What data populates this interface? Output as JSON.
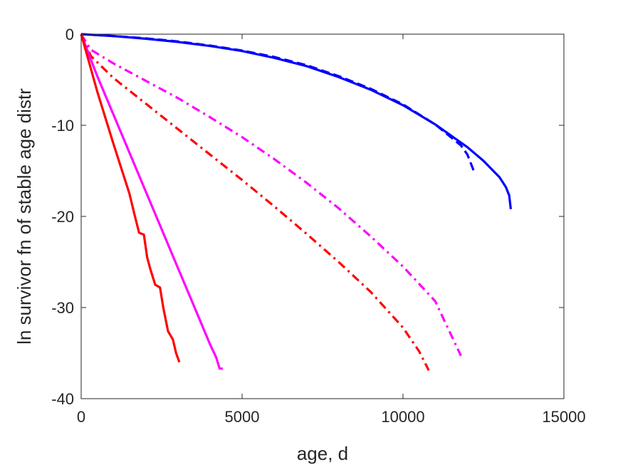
{
  "chart_data": {
    "type": "line",
    "title": "",
    "xlabel": "age, d",
    "ylabel": "ln survivor fn of stable age distr",
    "xlim": [
      0,
      15000
    ],
    "ylim": [
      -40,
      0
    ],
    "xticks": [
      0,
      5000,
      10000,
      15000
    ],
    "yticks": [
      0,
      -10,
      -20,
      -30,
      -40
    ],
    "xtick_labels": [
      "0",
      "5000",
      "10000",
      "15000"
    ],
    "ytick_labels": [
      "0",
      "-10",
      "-20",
      "-30",
      "-40"
    ],
    "grid": false,
    "legend": "none",
    "series": [
      {
        "color": "#0000ff",
        "style": "solid",
        "x": [
          0,
          1000,
          2000,
          3000,
          4000,
          5000,
          6000,
          7000,
          8000,
          9000,
          10000,
          11000,
          12000,
          12500,
          13000,
          13200,
          13300,
          13350
        ],
        "y": [
          0,
          -0.2,
          -0.5,
          -0.85,
          -1.3,
          -1.85,
          -2.6,
          -3.5,
          -4.7,
          -6.1,
          -7.8,
          -9.9,
          -12.4,
          -13.9,
          -15.7,
          -16.8,
          -17.7,
          -19.2
        ]
      },
      {
        "color": "#0000ff",
        "style": "dashed",
        "x": [
          0,
          1000,
          2000,
          3000,
          4000,
          5000,
          6000,
          7000,
          8000,
          9000,
          10000,
          11000,
          11800,
          12000,
          12200
        ],
        "y": [
          0,
          -0.2,
          -0.45,
          -0.8,
          -1.25,
          -1.8,
          -2.5,
          -3.4,
          -4.6,
          -6.0,
          -7.7,
          -9.9,
          -12.2,
          -13.2,
          -15.0
        ]
      },
      {
        "color": "#ff00ff",
        "style": "dashdot",
        "x": [
          0,
          300,
          1000,
          2000,
          3000,
          4000,
          5000,
          6000,
          7000,
          8000,
          9000,
          10000,
          11000,
          11800
        ],
        "y": [
          0,
          -1.7,
          -3.2,
          -5.1,
          -7.0,
          -9.1,
          -11.3,
          -13.7,
          -16.3,
          -19.1,
          -22.2,
          -25.5,
          -29.3,
          -35.3
        ]
      },
      {
        "color": "#ff0000",
        "style": "dashdot",
        "x": [
          0,
          300,
          1000,
          2000,
          3000,
          4000,
          5000,
          6000,
          7000,
          8000,
          9000,
          10000,
          10500,
          10800
        ],
        "y": [
          0,
          -2.4,
          -4.8,
          -7.6,
          -10.4,
          -13.2,
          -16.0,
          -18.9,
          -21.9,
          -25.0,
          -28.3,
          -32.2,
          -34.8,
          -36.9
        ]
      },
      {
        "color": "#ff00ff",
        "style": "solid",
        "x": [
          0,
          500,
          1000,
          1500,
          2000,
          2500,
          3000,
          3500,
          4000,
          4200,
          4300,
          4400
        ],
        "y": [
          0,
          -4.6,
          -8.8,
          -13.0,
          -17.2,
          -21.4,
          -25.6,
          -29.8,
          -34.0,
          -35.5,
          -36.7,
          -36.7
        ]
      },
      {
        "color": "#ff0000",
        "style": "solid",
        "x": [
          0,
          200,
          500,
          1000,
          1500,
          1650,
          1800,
          1950,
          2050,
          2150,
          2300,
          2450,
          2550,
          2700,
          2850,
          2950,
          3050
        ],
        "y": [
          0,
          -2.5,
          -6.3,
          -12.0,
          -17.5,
          -19.7,
          -21.8,
          -22.0,
          -24.5,
          -25.8,
          -27.5,
          -27.8,
          -30.0,
          -32.6,
          -33.5,
          -35.0,
          -36.0
        ]
      }
    ]
  }
}
